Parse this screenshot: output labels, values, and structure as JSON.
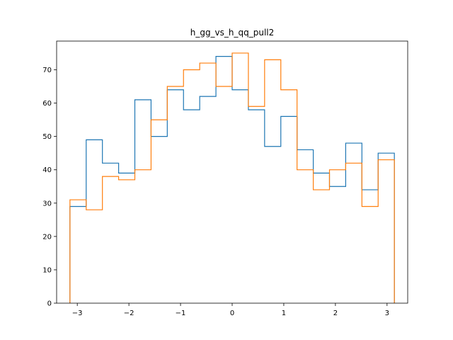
{
  "chart_data": {
    "type": "histogram",
    "title": "h_gg_vs_h_qq_pull2",
    "xlabel": "",
    "ylabel": "",
    "xlim": [
      -3.4,
      3.4
    ],
    "ylim": [
      0,
      78.6
    ],
    "xticks": [
      -3,
      -2,
      -1,
      0,
      1,
      2,
      3
    ],
    "yticks": [
      0,
      10,
      20,
      30,
      40,
      50,
      60,
      70
    ],
    "bin_edges": [
      -3.1416,
      -2.8274,
      -2.5133,
      -2.1991,
      -1.885,
      -1.5708,
      -1.2566,
      -0.9425,
      -0.6283,
      -0.3142,
      0,
      0.3142,
      0.6283,
      0.9425,
      1.2566,
      1.5708,
      1.885,
      2.1991,
      2.5133,
      2.8274,
      3.1416
    ],
    "series": [
      {
        "color": "#1f77b4",
        "values": [
          29,
          49,
          42,
          39,
          61,
          50,
          64,
          58,
          62,
          74,
          64,
          58,
          47,
          56,
          46,
          39,
          35,
          48,
          34,
          45
        ]
      },
      {
        "color": "#ff7f0e",
        "values": [
          31,
          28,
          38,
          37,
          40,
          55,
          65,
          70,
          72,
          65,
          75,
          59,
          73,
          64,
          40,
          34,
          40,
          42,
          29,
          43
        ]
      }
    ],
    "grid": false,
    "legend": "none"
  }
}
